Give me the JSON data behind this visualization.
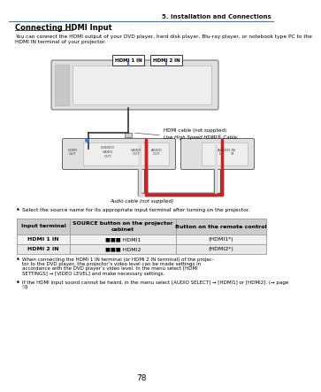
{
  "page_num": "78",
  "chapter_header": "5. Installation and Connections",
  "section_title": "Connecting HDMI Input",
  "intro_line1": "You can connect the HDMI output of your DVD player, hard disk player, Blu-ray player, or notebook type PC to the",
  "intro_line2": "HDMI IN terminal of your projector.",
  "hdmi1_label": "HDMI 1 IN",
  "hdmi2_label": "HDMI 2 IN",
  "hdmi_cable_note1": "HDMI cable (not supplied)",
  "hdmi_cable_note2": "Use High Speed HDMI® Cable.",
  "audio_cable_note": "Audio cable (not supplied)",
  "bullet1": "Select the source name for its appropriate input terminal after turning on the projector.",
  "table_header0": "Input terminal",
  "table_header1": "SOURCE button on the projector\ncabinet",
  "table_header2": "Button on the remote control",
  "table_r1c0": "HDMI 1 IN",
  "table_r1c1": "■■■ HDMI1",
  "table_r1c2": "(HDMI1*)",
  "table_r2c0": "HDMI 2 IN",
  "table_r2c1": "■■■ HDMI2",
  "table_r2c2": "(HDMI2*)",
  "bullet2_lines": [
    "When connecting the HDMI 1 IN terminal (or HDMI 2 IN terminal) of the projec-",
    "tor to the DVD player, the projector’s video level can be made settings in",
    "accordance with the DVD player’s video level. In the menu select [HDMI",
    "SETTINGS] → [VIDEO LEVEL] and make necessary settings."
  ],
  "bullet3_lines": [
    "If the HDMI input sound cannot be heard, in the menu select [AUDIO SELECT] → [HDMI1] or [HDMI2]. (→ page"
  ],
  "bullet3_link": "59",
  "bullet3_end": ")",
  "bg_color": "#ffffff",
  "header_line_color": "#3a7abf",
  "table_header_bg": "#cccccc",
  "table_row1_bg": "#f2f2f2",
  "table_row2_bg": "#e8e8e8",
  "table_border": "#999999",
  "link_color": "#3a7abf",
  "diagram_bg": "#e0e0e0",
  "diagram_inner": "#eeeeee",
  "cable_blue": "#3a7abf",
  "cable_black": "#333333",
  "cable_white": "#dddddd",
  "cable_red": "#cc2222"
}
